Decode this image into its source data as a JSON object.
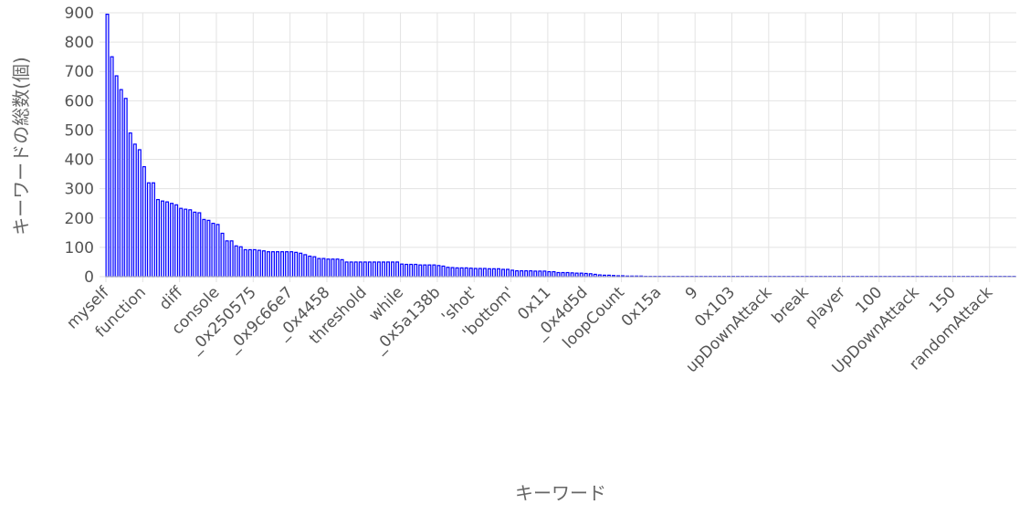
{
  "chart_data": {
    "type": "bar",
    "xlabel": "キーワード",
    "ylabel": "キーワードの総数(個)",
    "ylim": [
      0,
      900
    ],
    "yticks": [
      0,
      100,
      200,
      300,
      400,
      500,
      600,
      700,
      800,
      900
    ],
    "grid": true,
    "legend": "none",
    "bar_fill": "#e9e9ff",
    "bar_stroke": "#0000ff",
    "grid_color": "#e3e3e3",
    "x_tick_labels": [
      "myself",
      "function",
      "diff",
      "console",
      "_0x250575",
      "_0x9c66e7",
      "_0x4458",
      "threshold",
      "while",
      "_0x5a138b",
      "'shot'",
      "'bottom'",
      "0x11",
      "_0x4d5d",
      "loopCount",
      "0x15a",
      "9",
      "0x103",
      "upDownAttack",
      "break",
      "player",
      "100",
      "UpDownAttack",
      "150",
      "randomAttack"
    ],
    "x_tick_every": 8,
    "values": [
      895,
      750,
      685,
      638,
      608,
      490,
      452,
      433,
      375,
      320,
      320,
      263,
      258,
      255,
      250,
      245,
      233,
      230,
      228,
      220,
      218,
      195,
      192,
      182,
      178,
      148,
      122,
      122,
      105,
      102,
      92,
      92,
      92,
      90,
      88,
      85,
      85,
      85,
      85,
      85,
      85,
      83,
      80,
      75,
      70,
      68,
      62,
      62,
      60,
      60,
      60,
      58,
      50,
      50,
      50,
      50,
      50,
      50,
      50,
      50,
      50,
      50,
      50,
      50,
      43,
      42,
      42,
      42,
      40,
      40,
      40,
      40,
      38,
      36,
      32,
      31,
      30,
      30,
      30,
      29,
      28,
      28,
      28,
      27,
      27,
      27,
      25,
      25,
      22,
      20,
      20,
      20,
      20,
      19,
      19,
      19,
      17,
      17,
      14,
      14,
      14,
      13,
      12,
      12,
      11,
      10,
      8,
      6,
      5,
      5,
      4,
      3,
      3,
      2,
      2,
      2,
      2,
      1,
      1,
      1,
      1,
      1,
      1,
      1,
      1,
      1,
      1,
      1,
      1,
      1,
      1,
      1,
      1,
      1,
      1,
      1,
      1,
      1,
      1,
      1,
      1,
      1,
      1,
      1,
      1,
      1,
      1,
      1,
      1,
      1,
      1,
      1,
      1,
      1,
      1,
      1,
      1,
      1,
      1,
      1,
      1,
      1,
      1,
      1,
      1,
      1,
      1,
      1,
      1,
      1,
      1,
      1,
      1,
      1,
      1,
      1,
      1,
      1,
      1,
      1,
      1,
      1,
      1,
      1,
      1,
      1,
      1,
      1,
      1,
      1,
      1,
      1,
      1,
      1,
      1,
      1,
      1,
      1
    ]
  }
}
